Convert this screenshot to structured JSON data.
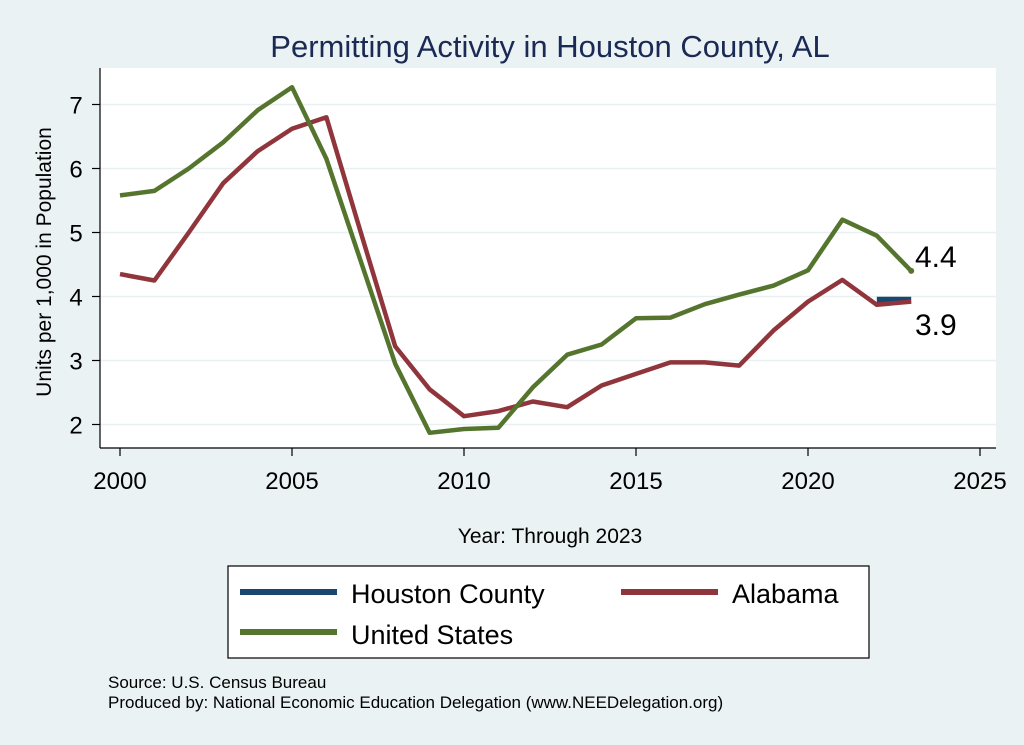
{
  "chart_data": {
    "type": "line",
    "title": "Permitting Activity in Houston County, AL",
    "xlabel": "Year: Through 2023",
    "ylabel": "Units per 1,000 in Population",
    "xlim": [
      2000,
      2025
    ],
    "ylim": [
      1.7,
      7.5
    ],
    "xticks": [
      2000,
      2005,
      2010,
      2015,
      2020,
      2025
    ],
    "yticks": [
      2,
      3,
      4,
      5,
      6,
      7
    ],
    "grid": true,
    "legend_position": "bottom",
    "series": [
      {
        "name": "Houston County",
        "color": "#1a476f",
        "x": [
          2022,
          2023
        ],
        "values": [
          3.95,
          3.95
        ]
      },
      {
        "name": "Alabama",
        "color": "#90353b",
        "x": [
          2000,
          2001,
          2002,
          2003,
          2004,
          2005,
          2006,
          2007,
          2008,
          2009,
          2010,
          2011,
          2012,
          2013,
          2014,
          2015,
          2016,
          2017,
          2018,
          2019,
          2020,
          2021,
          2022,
          2023
        ],
        "values": [
          4.35,
          4.25,
          5.0,
          5.77,
          6.27,
          6.62,
          6.8,
          5.0,
          3.22,
          2.55,
          2.13,
          2.21,
          2.36,
          2.27,
          2.61,
          2.79,
          2.97,
          2.97,
          2.92,
          3.47,
          3.92,
          4.26,
          3.87,
          3.92
        ]
      },
      {
        "name": "United States",
        "color": "#55752f",
        "x": [
          2000,
          2001,
          2002,
          2003,
          2004,
          2005,
          2006,
          2007,
          2008,
          2009,
          2010,
          2011,
          2012,
          2013,
          2014,
          2015,
          2016,
          2017,
          2018,
          2019,
          2020,
          2021,
          2022,
          2023
        ],
        "values": [
          5.58,
          5.65,
          6.0,
          6.41,
          6.91,
          7.27,
          6.15,
          4.55,
          2.95,
          1.87,
          1.93,
          1.95,
          2.58,
          3.09,
          3.25,
          3.66,
          3.67,
          3.88,
          4.03,
          4.17,
          4.41,
          5.2,
          4.95,
          4.4
        ]
      }
    ],
    "end_labels": [
      "4.4",
      "3.9"
    ],
    "legend": [
      "Houston County",
      "Alabama",
      "United States"
    ],
    "notes": [
      "Source: U.S. Census Bureau",
      "Produced by: National Economic Education Delegation (www.NEEDelegation.org)"
    ]
  }
}
